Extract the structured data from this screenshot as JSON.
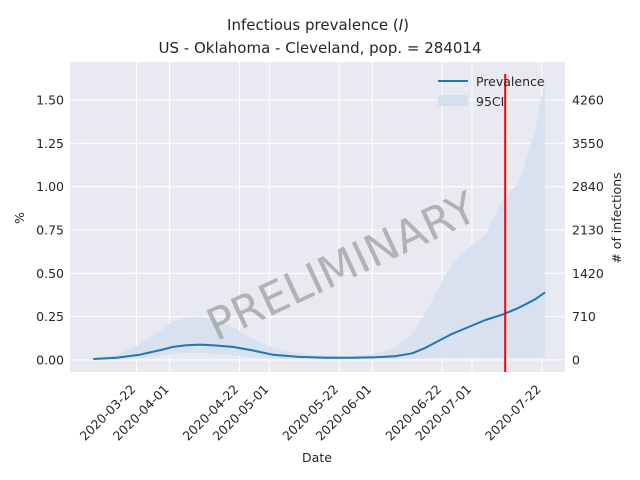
{
  "chart_data": {
    "type": "line",
    "title_line1": "Infectious prevalence (I)",
    "title_line2": "US - Oklahoma - Cleveland, pop. = 284014",
    "xlabel": "Date",
    "ylabel_left": "%",
    "ylabel_right": "# of infections",
    "x_ticks": [
      "2020-03-22",
      "2020-04-01",
      "2020-04-22",
      "2020-05-01",
      "2020-05-22",
      "2020-06-01",
      "2020-06-22",
      "2020-07-01",
      "2020-07-22"
    ],
    "y_ticks_left": [
      "0.00",
      "0.25",
      "0.50",
      "0.75",
      "1.00",
      "1.25",
      "1.50"
    ],
    "y_ticks_right": [
      "0",
      "710",
      "1420",
      "2130",
      "2840",
      "3550",
      "4260"
    ],
    "ylim_left": [
      -0.07,
      1.72
    ],
    "xlim": [
      "2020-03-02",
      "2020-07-29"
    ],
    "legend_placement": "top-right",
    "legend": [
      "Prevalence",
      "95CI"
    ],
    "marker_date": "2020-07-11",
    "watermark": "PRELIMINARY",
    "colors": {
      "background": "#e9e9f1",
      "grid": "#ffffff",
      "line": "#1f77b4",
      "ci": "#d5e0ee",
      "marker": "#ff0000"
    },
    "series": [
      {
        "name": "Prevalence",
        "x": [
          "2020-03-09",
          "2020-03-16",
          "2020-03-23",
          "2020-03-30",
          "2020-04-02",
          "2020-04-06",
          "2020-04-10",
          "2020-04-14",
          "2020-04-20",
          "2020-04-26",
          "2020-05-02",
          "2020-05-10",
          "2020-05-18",
          "2020-05-26",
          "2020-06-02",
          "2020-06-08",
          "2020-06-13",
          "2020-06-17",
          "2020-06-21",
          "2020-06-25",
          "2020-06-30",
          "2020-07-05",
          "2020-07-10",
          "2020-07-15",
          "2020-07-20",
          "2020-07-23"
        ],
        "values": [
          0.005,
          0.012,
          0.03,
          0.06,
          0.075,
          0.085,
          0.088,
          0.085,
          0.075,
          0.055,
          0.03,
          0.017,
          0.012,
          0.012,
          0.015,
          0.022,
          0.038,
          0.07,
          0.11,
          0.15,
          0.19,
          0.23,
          0.26,
          0.3,
          0.35,
          0.39
        ]
      }
    ],
    "ci": {
      "name": "95CI",
      "x": [
        "2020-03-09",
        "2020-03-16",
        "2020-03-23",
        "2020-03-30",
        "2020-04-02",
        "2020-04-06",
        "2020-04-10",
        "2020-04-14",
        "2020-04-20",
        "2020-04-26",
        "2020-05-02",
        "2020-05-10",
        "2020-05-18",
        "2020-05-26",
        "2020-06-02",
        "2020-06-08",
        "2020-06-13",
        "2020-06-17",
        "2020-06-21",
        "2020-06-25",
        "2020-06-30",
        "2020-07-05",
        "2020-07-10",
        "2020-07-15",
        "2020-07-20",
        "2020-07-23"
      ],
      "upper": [
        0.01,
        0.03,
        0.09,
        0.18,
        0.22,
        0.245,
        0.25,
        0.235,
        0.19,
        0.12,
        0.07,
        0.035,
        0.022,
        0.02,
        0.035,
        0.07,
        0.15,
        0.27,
        0.42,
        0.55,
        0.65,
        0.72,
        0.92,
        1.02,
        1.32,
        1.62
      ],
      "lower": [
        0,
        0,
        0.01,
        0.025,
        0.035,
        0.04,
        0.04,
        0.035,
        0.025,
        0.015,
        0.008,
        0.004,
        0.003,
        0.003,
        0.004,
        0.005,
        0.008,
        0.01,
        0.012,
        0.014,
        0.014,
        0.014,
        0.014,
        0.014,
        0.014,
        0.014
      ]
    }
  }
}
